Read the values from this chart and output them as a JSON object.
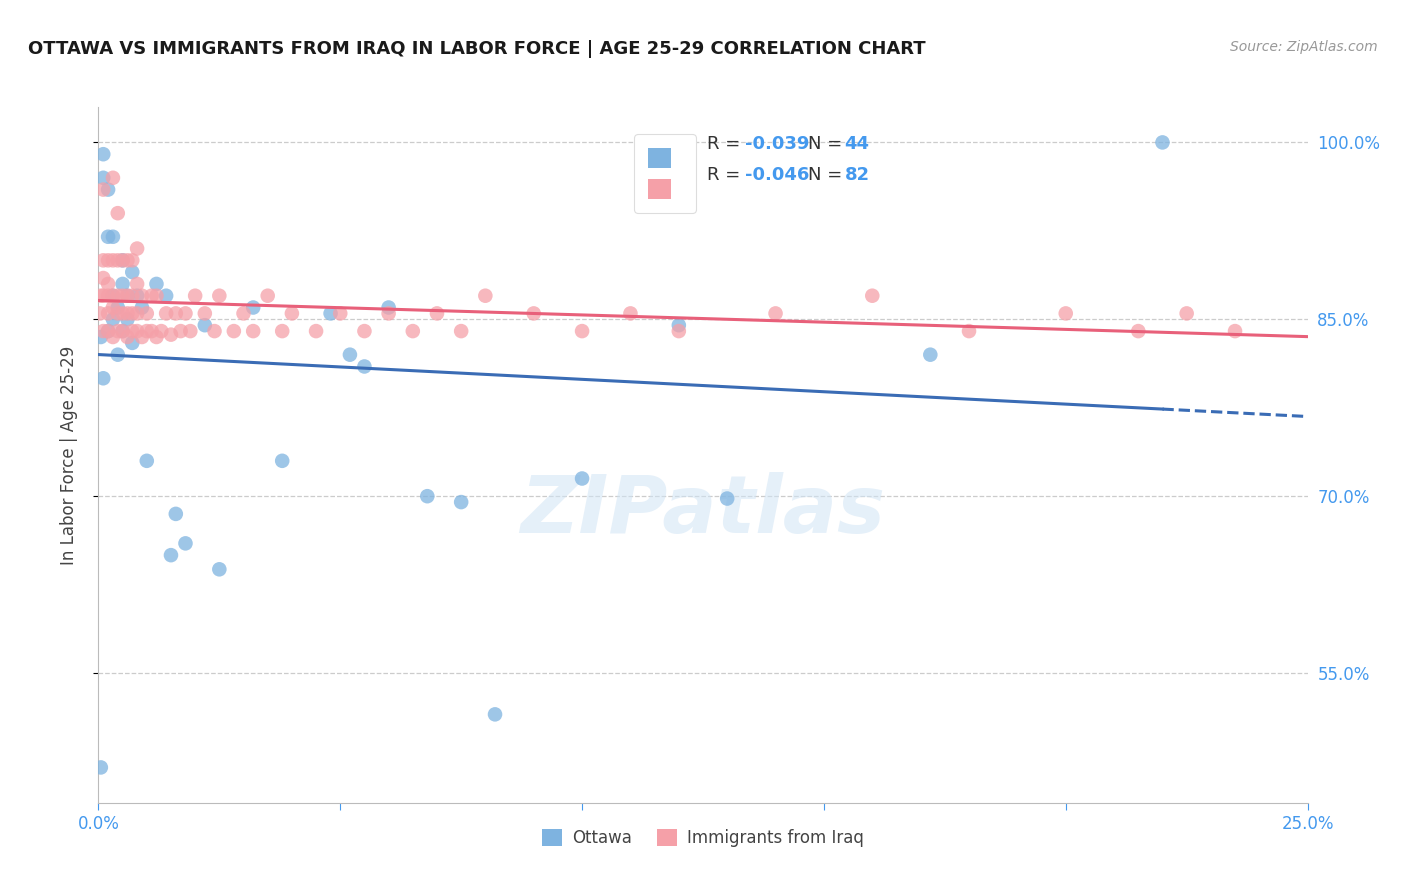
{
  "title": "OTTAWA VS IMMIGRANTS FROM IRAQ IN LABOR FORCE | AGE 25-29 CORRELATION CHART",
  "source_text": "Source: ZipAtlas.com",
  "ylabel": "In Labor Force | Age 25-29",
  "xlim": [
    0.0,
    0.25
  ],
  "ylim": [
    0.44,
    1.03
  ],
  "ytick_vals": [
    0.55,
    0.7,
    0.85,
    1.0
  ],
  "watermark": "ZIPatlas",
  "color_ottawa": "#7EB3E0",
  "color_iraq": "#F5A0A8",
  "color_trendline_ottawa": "#3A6CB5",
  "color_trendline_iraq": "#E8607A",
  "color_axis_blue": "#4499EE",
  "ottawa_x": [
    0.0005,
    0.0005,
    0.001,
    0.001,
    0.001,
    0.002,
    0.002,
    0.002,
    0.003,
    0.003,
    0.003,
    0.004,
    0.004,
    0.005,
    0.005,
    0.005,
    0.006,
    0.006,
    0.007,
    0.007,
    0.008,
    0.009,
    0.01,
    0.012,
    0.014,
    0.016,
    0.022,
    0.025,
    0.032,
    0.038,
    0.048,
    0.052,
    0.055,
    0.06,
    0.068,
    0.075,
    0.082,
    0.12,
    0.172,
    0.22,
    0.1,
    0.13,
    0.015,
    0.018
  ],
  "ottawa_y": [
    0.47,
    0.835,
    0.97,
    0.99,
    0.8,
    0.92,
    0.96,
    0.84,
    0.87,
    0.85,
    0.92,
    0.82,
    0.86,
    0.84,
    0.88,
    0.9,
    0.87,
    0.85,
    0.89,
    0.83,
    0.87,
    0.86,
    0.73,
    0.88,
    0.87,
    0.685,
    0.845,
    0.638,
    0.86,
    0.73,
    0.855,
    0.82,
    0.81,
    0.86,
    0.7,
    0.695,
    0.515,
    0.845,
    0.82,
    1.0,
    0.715,
    0.698,
    0.65,
    0.66
  ],
  "iraq_x": [
    0.0003,
    0.0005,
    0.001,
    0.001,
    0.001,
    0.001,
    0.001,
    0.002,
    0.002,
    0.002,
    0.002,
    0.002,
    0.003,
    0.003,
    0.003,
    0.003,
    0.003,
    0.004,
    0.004,
    0.004,
    0.004,
    0.004,
    0.005,
    0.005,
    0.005,
    0.005,
    0.006,
    0.006,
    0.006,
    0.006,
    0.007,
    0.007,
    0.007,
    0.007,
    0.008,
    0.008,
    0.008,
    0.008,
    0.009,
    0.009,
    0.01,
    0.01,
    0.011,
    0.011,
    0.012,
    0.012,
    0.013,
    0.014,
    0.015,
    0.016,
    0.017,
    0.018,
    0.019,
    0.02,
    0.022,
    0.024,
    0.025,
    0.028,
    0.03,
    0.032,
    0.035,
    0.038,
    0.04,
    0.045,
    0.05,
    0.055,
    0.06,
    0.065,
    0.07,
    0.075,
    0.08,
    0.09,
    0.1,
    0.11,
    0.12,
    0.14,
    0.16,
    0.18,
    0.2,
    0.215,
    0.225,
    0.235
  ],
  "iraq_y": [
    0.855,
    0.87,
    0.84,
    0.87,
    0.885,
    0.9,
    0.96,
    0.84,
    0.87,
    0.88,
    0.9,
    0.855,
    0.835,
    0.86,
    0.87,
    0.9,
    0.97,
    0.84,
    0.87,
    0.855,
    0.9,
    0.94,
    0.84,
    0.87,
    0.855,
    0.9,
    0.835,
    0.87,
    0.855,
    0.9,
    0.84,
    0.855,
    0.87,
    0.9,
    0.84,
    0.855,
    0.88,
    0.91,
    0.835,
    0.87,
    0.84,
    0.855,
    0.84,
    0.87,
    0.835,
    0.87,
    0.84,
    0.855,
    0.837,
    0.855,
    0.84,
    0.855,
    0.84,
    0.87,
    0.855,
    0.84,
    0.87,
    0.84,
    0.855,
    0.84,
    0.87,
    0.84,
    0.855,
    0.84,
    0.855,
    0.84,
    0.855,
    0.84,
    0.855,
    0.84,
    0.87,
    0.855,
    0.84,
    0.855,
    0.84,
    0.855,
    0.87,
    0.84,
    0.855,
    0.84,
    0.855,
    0.84
  ]
}
